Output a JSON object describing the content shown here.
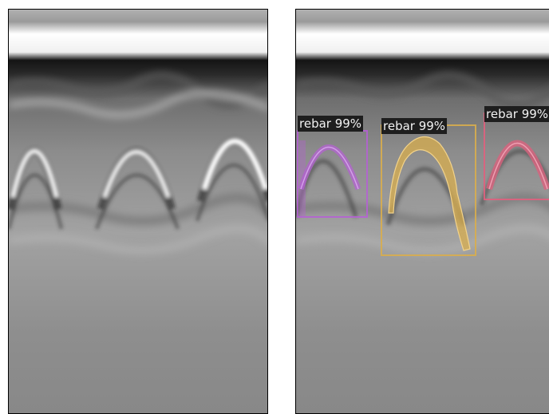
{
  "detections": [
    {
      "label": "rebar 99%",
      "class_name": "rebar",
      "score_text": "99%",
      "color": "#b65fd6"
    },
    {
      "label": "rebar 99%",
      "class_name": "rebar",
      "score_text": "99%",
      "color": "#d8ad4e"
    },
    {
      "label": "rebar 99%",
      "class_name": "rebar",
      "score_text": "99%",
      "color": "#e0607e"
    }
  ],
  "image": {
    "panels": [
      "original-gpr-scan",
      "segmented-gpr-scan"
    ],
    "background_color": "#ffffff",
    "scan_base_gray": "#8a8a8a"
  }
}
